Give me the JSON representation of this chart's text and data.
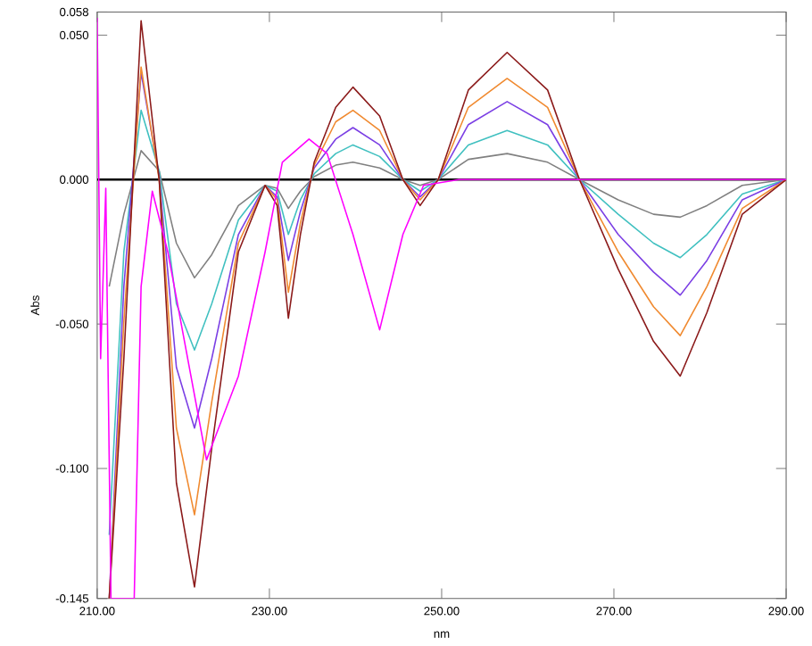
{
  "chart_data": {
    "type": "line",
    "xlabel": "nm",
    "ylabel": "Abs",
    "x": [
      211.4,
      213.1,
      215.1,
      217.2,
      219.2,
      221.3,
      223.3,
      226.4,
      229.5,
      230.9,
      232.2,
      233.6,
      235.2,
      237.7,
      239.7,
      242.8,
      245.5,
      247.5,
      249.6,
      253.1,
      257.6,
      262.3,
      266.0,
      270.5,
      274.6,
      277.7,
      280.8,
      284.9,
      290.0
    ],
    "series": [
      {
        "color": "#808080",
        "values": [
          -0.037,
          -0.012,
          0.01,
          0.003,
          -0.022,
          -0.034,
          -0.026,
          -0.009,
          -0.002,
          -0.003,
          -0.01,
          -0.004,
          0.001,
          0.005,
          0.006,
          0.004,
          0,
          -0.002,
          0,
          0.007,
          0.009,
          0.006,
          0,
          -0.007,
          -0.012,
          -0.013,
          -0.009,
          -0.002,
          0
        ]
      },
      {
        "color": "#40c0c0",
        "values": [
          -0.123,
          -0.025,
          0.024,
          0.003,
          -0.043,
          -0.059,
          -0.043,
          -0.014,
          -0.002,
          -0.004,
          -0.019,
          -0.007,
          0.002,
          0.009,
          0.012,
          0.008,
          0,
          -0.004,
          0,
          0.012,
          0.017,
          0.012,
          0,
          -0.012,
          -0.022,
          -0.027,
          -0.019,
          -0.005,
          0
        ]
      },
      {
        "color": "#7b3fe4",
        "values": [
          -0.145,
          -0.037,
          0.037,
          0.001,
          -0.065,
          -0.086,
          -0.062,
          -0.019,
          -0.002,
          -0.006,
          -0.028,
          -0.011,
          0.004,
          0.014,
          0.018,
          0.012,
          0,
          -0.006,
          0,
          0.019,
          0.027,
          0.019,
          0,
          -0.019,
          -0.032,
          -0.04,
          -0.028,
          -0.007,
          0
        ]
      },
      {
        "color": "#f08a30",
        "values": [
          -0.145,
          -0.049,
          0.039,
          0,
          -0.086,
          -0.116,
          -0.077,
          -0.022,
          -0.002,
          -0.007,
          -0.039,
          -0.015,
          0.005,
          0.02,
          0.024,
          0.017,
          0,
          -0.007,
          0,
          0.025,
          0.035,
          0.025,
          0,
          -0.025,
          -0.044,
          -0.054,
          -0.037,
          -0.01,
          0
        ]
      },
      {
        "color": "#8b1a1a",
        "values": [
          -0.145,
          -0.062,
          0.055,
          0,
          -0.105,
          -0.141,
          -0.093,
          -0.025,
          -0.002,
          -0.009,
          -0.048,
          -0.019,
          0.006,
          0.025,
          0.032,
          0.022,
          0,
          -0.009,
          0,
          0.031,
          0.044,
          0.031,
          0,
          -0.031,
          -0.056,
          -0.068,
          -0.046,
          -0.012,
          0
        ]
      },
      {
        "color": "#ff00ff",
        "x": [
          210.0,
          210.4,
          211.0,
          211.6,
          214.3,
          215.1,
          216.4,
          218.2,
          222.7,
          226.4,
          229.5,
          231.5,
          234.6,
          236.7,
          239.7,
          242.8,
          245.5,
          247.9,
          252.0,
          270.5,
          290.0
        ],
        "values": [
          0.056,
          -0.062,
          -0.003,
          -0.145,
          -0.145,
          -0.037,
          -0.004,
          -0.025,
          -0.097,
          -0.068,
          -0.025,
          0.006,
          0.014,
          0.009,
          -0.019,
          -0.052,
          -0.019,
          -0.002,
          0,
          0,
          0
        ]
      }
    ],
    "xlim": [
      210,
      290
    ],
    "xticks": [
      {
        "value": 210,
        "label": "210.00"
      },
      {
        "value": 230,
        "label": "230.00"
      },
      {
        "value": 250,
        "label": "250.00"
      },
      {
        "value": 270,
        "label": "270.00"
      },
      {
        "value": 290,
        "label": "290.00"
      }
    ],
    "ylim": [
      -0.145,
      0.058
    ],
    "yticks": [
      {
        "value": -0.145,
        "label": "-0.145"
      },
      {
        "value": -0.1,
        "label": "-0.100"
      },
      {
        "value": -0.05,
        "label": "-0.050"
      },
      {
        "value": 0,
        "label": "0.000"
      },
      {
        "value": 0.05,
        "label": "0.050"
      },
      {
        "value": 0.058,
        "label": "0.058"
      }
    ],
    "ref_lines": [
      {
        "axis": "y",
        "value": 0,
        "color": "#000000"
      }
    ],
    "grid": false,
    "marker": "none",
    "line_style": "solid"
  }
}
